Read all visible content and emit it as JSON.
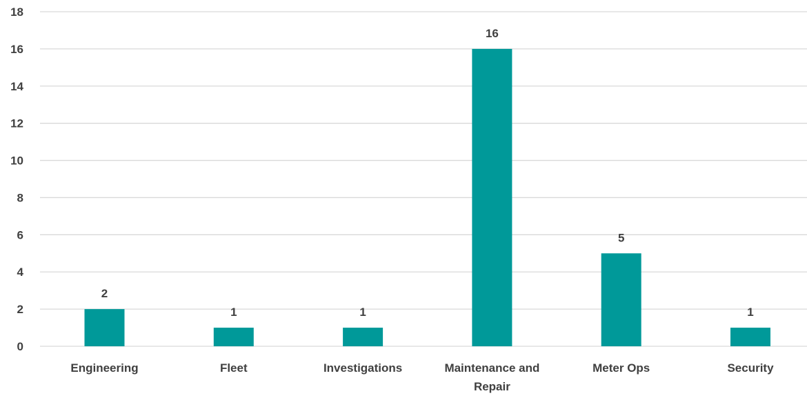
{
  "colors": {
    "bar": "#009999",
    "grid": "#d9d9d9",
    "text": "#404040"
  },
  "chart_data": {
    "type": "bar",
    "categories": [
      [
        "Engineering"
      ],
      [
        "Fleet"
      ],
      [
        "Investigations"
      ],
      [
        "Maintenance and",
        "Repair"
      ],
      [
        "Meter Ops"
      ],
      [
        "Security"
      ]
    ],
    "values": [
      2,
      1,
      1,
      16,
      5,
      1
    ],
    "data_labels": [
      "2",
      "1",
      "1",
      "16",
      "5",
      "1"
    ],
    "y_ticks": [
      "0",
      "2",
      "4",
      "6",
      "8",
      "10",
      "12",
      "14",
      "16",
      "18"
    ],
    "ylim": [
      0,
      18
    ],
    "grid": true,
    "legend": "none",
    "title": "",
    "xlabel": "",
    "ylabel": ""
  }
}
